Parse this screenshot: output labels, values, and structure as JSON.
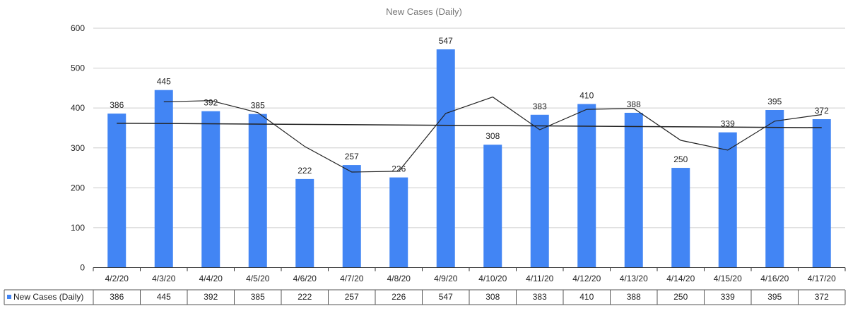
{
  "chart_data": {
    "type": "bar",
    "title": "New Cases (Daily)",
    "xlabel": "",
    "ylabel": "",
    "categories": [
      "4/2/20",
      "4/3/20",
      "4/4/20",
      "4/5/20",
      "4/6/20",
      "4/7/20",
      "4/8/20",
      "4/9/20",
      "4/10/20",
      "4/11/20",
      "4/12/20",
      "4/13/20",
      "4/14/20",
      "4/15/20",
      "4/16/20",
      "4/17/20"
    ],
    "series": [
      {
        "name": "New Cases (Daily)",
        "values": [
          386,
          445,
          392,
          385,
          222,
          257,
          226,
          547,
          308,
          383,
          410,
          388,
          250,
          339,
          395,
          372
        ],
        "color": "#4285f4"
      }
    ],
    "overlay_lines": [
      {
        "kind": "moving-average",
        "color": "#222222",
        "values": [
          null,
          415.5,
          418.5,
          388.5,
          303.5,
          239.5,
          241.5,
          386.5,
          427.5,
          345.5,
          396.5,
          399,
          319,
          294.5,
          367,
          383.5
        ]
      },
      {
        "kind": "linear-trend",
        "color": "#222222",
        "values": [
          361.9,
          350.7
        ]
      }
    ],
    "yticks": [
      0,
      100,
      200,
      300,
      400,
      500,
      600
    ],
    "ylim": [
      0,
      600
    ],
    "grid": true,
    "legend": "bottom-left data table",
    "data_table": true
  }
}
